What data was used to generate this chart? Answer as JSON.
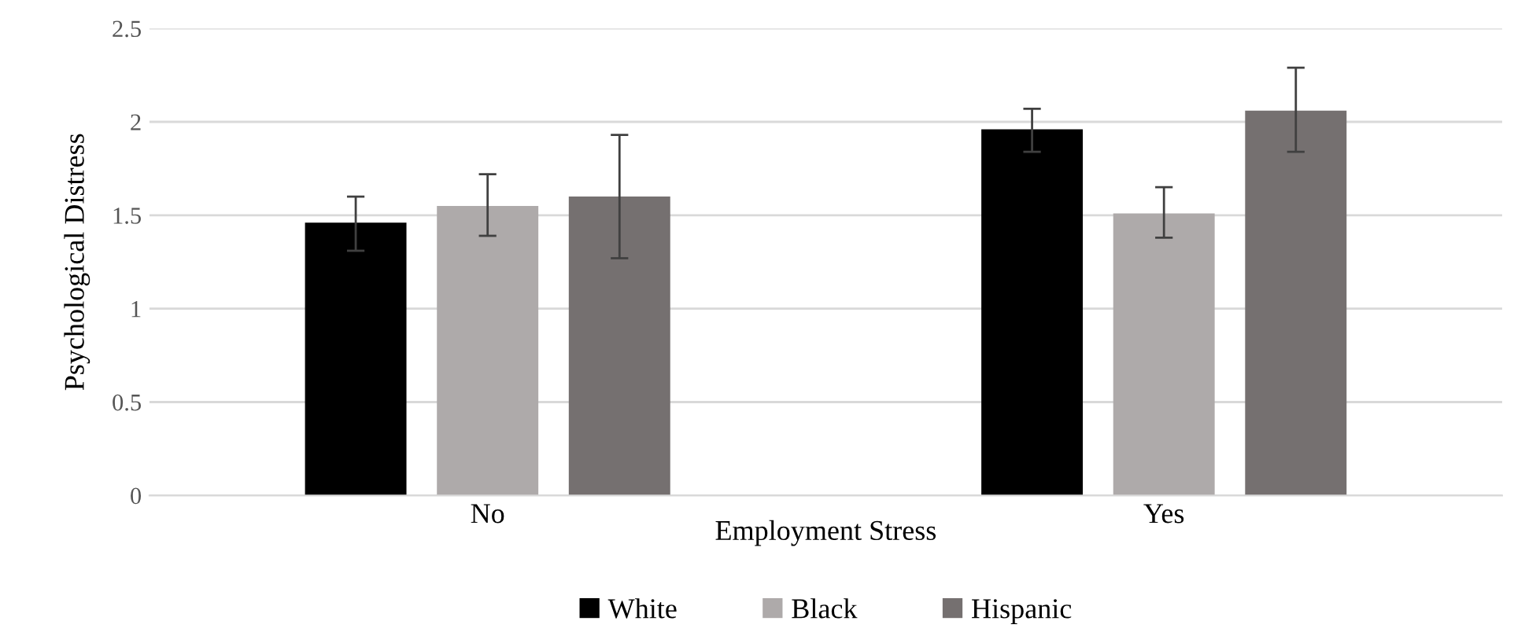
{
  "chart_data": {
    "type": "bar",
    "xlabel": "Employment Stress",
    "ylabel": "Psychological Distress",
    "categories": [
      "No",
      "Yes"
    ],
    "series": [
      {
        "name": "White",
        "color": "#000000",
        "values": [
          1.46,
          1.96
        ],
        "errors": [
          [
            1.31,
            1.6
          ],
          [
            1.84,
            2.07
          ]
        ]
      },
      {
        "name": "Black",
        "color": "#aeaaaa",
        "values": [
          1.55,
          1.51
        ],
        "errors": [
          [
            1.39,
            1.72
          ],
          [
            1.38,
            1.65
          ]
        ]
      },
      {
        "name": "Hispanic",
        "color": "#757070",
        "values": [
          1.6,
          2.06
        ],
        "errors": [
          [
            1.27,
            1.93
          ],
          [
            1.84,
            2.29
          ]
        ]
      }
    ],
    "ylim": [
      0,
      2.5
    ],
    "yticks": [
      0,
      0.5,
      1,
      1.5,
      2,
      2.5
    ],
    "grid": "y",
    "legend": "bottom"
  }
}
